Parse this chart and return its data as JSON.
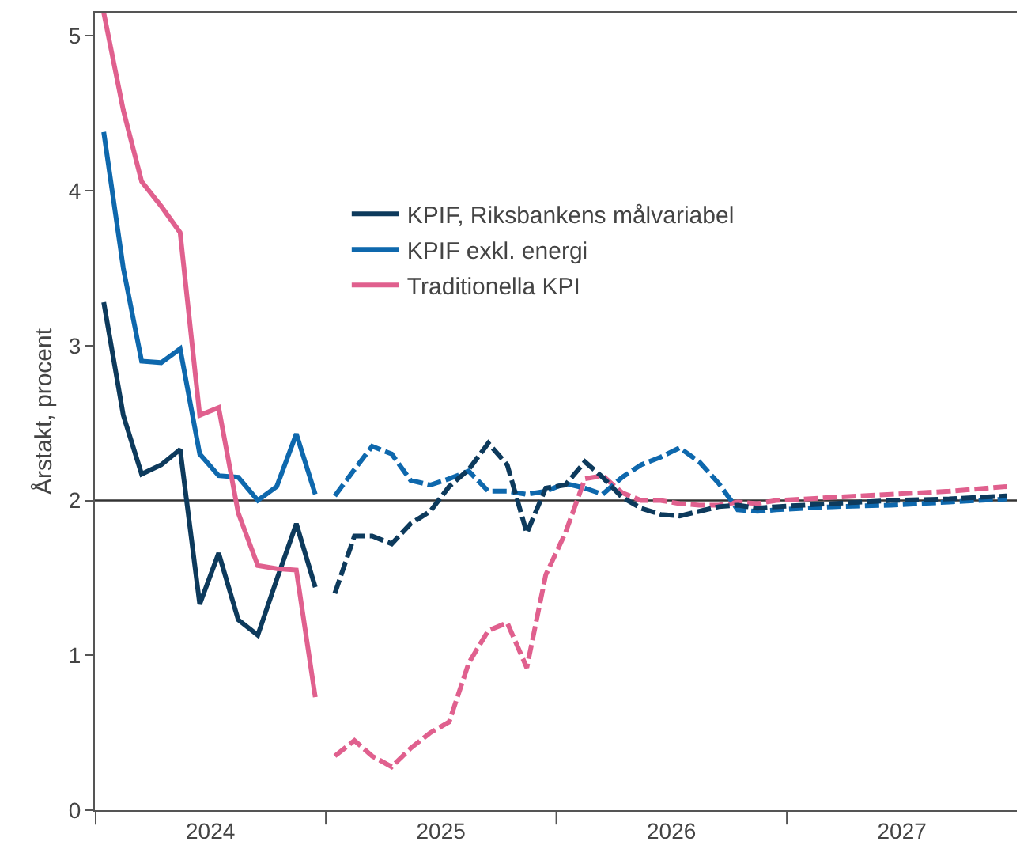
{
  "chart_data": {
    "type": "line",
    "ylabel": "Årstakt, procent",
    "xlim": [
      "2024-01-01",
      "2027-12-31"
    ],
    "xticks": [
      {
        "value": "2024-01-01",
        "label": null
      },
      {
        "value": "2025-01-01",
        "label": null
      },
      {
        "value": "2026-01-01",
        "label": null
      },
      {
        "value": "2027-01-01",
        "label": null
      },
      {
        "value": "2024-07-02",
        "label": "2024"
      },
      {
        "value": "2025-07-02",
        "label": "2025"
      },
      {
        "value": "2026-07-02",
        "label": "2026"
      },
      {
        "value": "2027-07-02",
        "label": "2027"
      }
    ],
    "ylim": [
      0,
      5.15
    ],
    "yticks": [
      0,
      1,
      2,
      3,
      4,
      5
    ],
    "grid": false,
    "legend": "top",
    "ref_lines": [
      {
        "axis": "y",
        "value": 2,
        "color": "#333333"
      }
    ],
    "series": [
      {
        "name": "KPIF, Riksbankens målvariabel",
        "color": "#0d3a5c",
        "line_style": "solid",
        "x": [
          "2024-01-15",
          "2024-02-15",
          "2024-03-15",
          "2024-04-15",
          "2024-05-15",
          "2024-06-15",
          "2024-07-15",
          "2024-08-15",
          "2024-09-15",
          "2024-10-15",
          "2024-11-15",
          "2024-12-15"
        ],
        "values": [
          3.28,
          2.55,
          2.17,
          2.23,
          2.33,
          1.33,
          1.66,
          1.23,
          1.13,
          1.49,
          1.85,
          1.44
        ]
      },
      {
        "name": "KPIF exkl. energi",
        "color": "#0e68ad",
        "line_style": "solid",
        "x": [
          "2024-01-15",
          "2024-02-15",
          "2024-03-15",
          "2024-04-15",
          "2024-05-15",
          "2024-06-15",
          "2024-07-15",
          "2024-08-15",
          "2024-09-15",
          "2024-10-15",
          "2024-11-15",
          "2024-12-15"
        ],
        "values": [
          4.38,
          3.5,
          2.9,
          2.89,
          2.98,
          2.3,
          2.16,
          2.15,
          2.0,
          2.09,
          2.43,
          2.04
        ]
      },
      {
        "name": "Traditionella KPI",
        "color": "#e0608e",
        "line_style": "solid",
        "x": [
          "2024-01-15",
          "2024-02-15",
          "2024-03-15",
          "2024-04-15",
          "2024-05-15",
          "2024-06-15",
          "2024-07-15",
          "2024-08-15",
          "2024-09-15",
          "2024-10-15",
          "2024-11-15",
          "2024-12-15"
        ],
        "values": [
          5.15,
          4.52,
          4.06,
          3.9,
          3.73,
          2.55,
          2.6,
          1.92,
          1.58,
          1.56,
          1.55,
          0.73
        ]
      },
      {
        "color": "#e0608e",
        "line_style": "dashed",
        "x": [
          "2025-01-15",
          "2025-02-15",
          "2025-03-15",
          "2025-04-15",
          "2025-05-15",
          "2025-06-15",
          "2025-07-15",
          "2025-08-15",
          "2025-09-15",
          "2025-10-15",
          "2025-11-15",
          "2025-12-15",
          "2026-01-15",
          "2026-02-15",
          "2026-03-15",
          "2026-04-15",
          "2026-05-15",
          "2026-06-15",
          "2026-07-15",
          "2026-08-15",
          "2026-09-15",
          "2026-10-15",
          "2026-11-15",
          "2026-12-15",
          "2027-03-15",
          "2027-06-15",
          "2027-09-15",
          "2027-12-15"
        ],
        "values": [
          0.35,
          0.45,
          0.35,
          0.28,
          0.4,
          0.5,
          0.57,
          0.95,
          1.16,
          1.21,
          0.92,
          1.52,
          1.79,
          2.14,
          2.16,
          2.05,
          2.0,
          2.0,
          1.98,
          1.97,
          1.97,
          1.99,
          1.98,
          2.0,
          2.02,
          2.04,
          2.06,
          2.09
        ]
      },
      {
        "color": "#0e68ad",
        "line_style": "dashed",
        "x": [
          "2025-01-15",
          "2025-02-15",
          "2025-03-15",
          "2025-04-15",
          "2025-05-15",
          "2025-06-15",
          "2025-07-15",
          "2025-08-15",
          "2025-09-15",
          "2025-10-15",
          "2025-11-15",
          "2025-12-15",
          "2026-01-15",
          "2026-02-15",
          "2026-03-15",
          "2026-04-15",
          "2026-05-15",
          "2026-06-15",
          "2026-07-15",
          "2026-08-15",
          "2026-09-15",
          "2026-10-15",
          "2026-11-15",
          "2026-12-15",
          "2027-03-15",
          "2027-06-15",
          "2027-09-15",
          "2027-12-15"
        ],
        "values": [
          2.03,
          2.2,
          2.35,
          2.3,
          2.13,
          2.1,
          2.14,
          2.19,
          2.06,
          2.06,
          2.04,
          2.06,
          2.11,
          2.08,
          2.04,
          2.15,
          2.23,
          2.28,
          2.34,
          2.25,
          2.11,
          1.94,
          1.93,
          1.94,
          1.96,
          1.97,
          1.99,
          2.01
        ]
      },
      {
        "color": "#0d3a5c",
        "line_style": "dashed",
        "x": [
          "2025-01-15",
          "2025-02-15",
          "2025-03-15",
          "2025-04-15",
          "2025-05-15",
          "2025-06-15",
          "2025-07-15",
          "2025-08-15",
          "2025-09-15",
          "2025-10-15",
          "2025-11-15",
          "2025-12-15",
          "2026-01-15",
          "2026-02-15",
          "2026-03-15",
          "2026-04-15",
          "2026-05-15",
          "2026-06-15",
          "2026-07-15",
          "2026-08-15",
          "2026-09-15",
          "2026-10-15",
          "2026-11-15",
          "2026-12-15",
          "2027-03-15",
          "2027-06-15",
          "2027-09-15",
          "2027-12-15"
        ],
        "values": [
          1.4,
          1.77,
          1.77,
          1.72,
          1.85,
          1.93,
          2.09,
          2.2,
          2.37,
          2.23,
          1.79,
          2.08,
          2.1,
          2.25,
          2.15,
          2.02,
          1.95,
          1.91,
          1.9,
          1.93,
          1.96,
          1.97,
          1.95,
          1.96,
          1.98,
          2.0,
          2.01,
          2.03
        ]
      }
    ]
  }
}
